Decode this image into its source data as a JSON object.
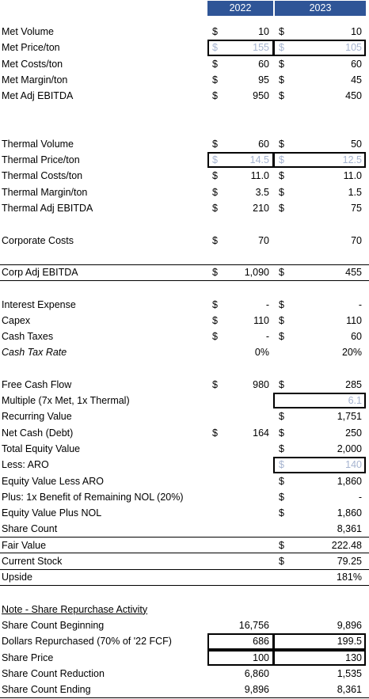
{
  "header": [
    "2022",
    "2023"
  ],
  "rows": [
    {
      "label": "Met Volume",
      "d1": "$",
      "v1": "10",
      "d2": "$",
      "v2": "10"
    },
    {
      "label": "Met Price/ton",
      "d1": "$",
      "v1": "155",
      "d2": "$",
      "v2": "105"
    },
    {
      "label": "Met Costs/ton",
      "d1": "$",
      "v1": "60",
      "d2": "$",
      "v2": "60"
    },
    {
      "label": "Met Margin/ton",
      "d1": "$",
      "v1": "95",
      "d2": "$",
      "v2": "45"
    },
    {
      "label": "Met Adj EBITDA",
      "d1": "$",
      "v1": "950",
      "d2": "$",
      "v2": "450"
    },
    null,
    null,
    {
      "label": "Thermal Volume",
      "d1": "$",
      "v1": "60",
      "d2": "$",
      "v2": "50"
    },
    {
      "label": "Thermal Price/ton",
      "d1": "$",
      "v1": "14.5",
      "d2": "$",
      "v2": "12.5"
    },
    {
      "label": "Thermal Costs/ton",
      "d1": "$",
      "v1": "11.0",
      "d2": "$",
      "v2": "11.0"
    },
    {
      "label": "Thermal Margin/ton",
      "d1": "$",
      "v1": "3.5",
      "d2": "$",
      "v2": "1.5"
    },
    {
      "label": "Thermal Adj EBITDA",
      "d1": "$",
      "v1": "210",
      "d2": "$",
      "v2": "75"
    },
    null,
    {
      "label": "Corporate Costs",
      "d1": "$",
      "v1": "70",
      "v2": "70"
    },
    null,
    {
      "label": "Corp Adj EBITDA",
      "d1": "$",
      "v1": "1,090",
      "d2": "$",
      "v2": "455"
    },
    null,
    {
      "label": "Interest Expense",
      "d1": "$",
      "v1": "-",
      "d2": "$",
      "v2": "-"
    },
    {
      "label": "Capex",
      "d1": "$",
      "v1": "110",
      "d2": "$",
      "v2": "110"
    },
    {
      "label": "Cash Taxes",
      "d1": "$",
      "v1": "-",
      "d2": "$",
      "v2": "60"
    },
    {
      "label": "Cash Tax Rate",
      "v1": "0%",
      "v2": "20%"
    },
    null,
    {
      "label": "Free Cash Flow",
      "d1": "$",
      "v1": "980",
      "d2": "$",
      "v2": "285"
    },
    {
      "label": "Multiple (7x Met, 1x Thermal)",
      "v2": "6.1"
    },
    {
      "label": "Recurring Value",
      "d2": "$",
      "v2": "1,751"
    },
    {
      "label": "Net Cash (Debt)",
      "d1": "$",
      "v1": "164",
      "d2": "$",
      "v2": "250"
    },
    {
      "label": "Total Equity Value",
      "d2": "$",
      "v2": "2,000"
    },
    {
      "label": "Less: ARO",
      "d2": "$",
      "v2": "140"
    },
    {
      "label": "Equity Value Less ARO",
      "d2": "$",
      "v2": "1,860"
    },
    {
      "label": "Plus: 1x Benefit of Remaining NOL (20%)",
      "d2": "$",
      "v2": "-"
    },
    {
      "label": "Equity Value Plus NOL",
      "d2": "$",
      "v2": "1,860"
    },
    {
      "label": "Share Count",
      "v2": "8,361"
    },
    {
      "label": "Fair Value",
      "d2": "$",
      "v2": "222.48"
    },
    {
      "label": "Current Stock",
      "d2": "$",
      "v2": "79.25"
    },
    {
      "label": "Upside",
      "v2": "181%"
    },
    null,
    {
      "label": "Note - Share Repurchase Activity"
    },
    {
      "label": "Share Count Beginning",
      "v1": "16,756",
      "v2": "9,896"
    },
    {
      "label": "Dollars Repurchased (70% of '22 FCF)",
      "v1": "686",
      "v2": "199.5"
    },
    {
      "label": "Share Price",
      "v1": "100",
      "v2": "130"
    },
    {
      "label": "Share Count Reduction",
      "v1": "6,860",
      "v2": "1,535"
    },
    {
      "label": "Share Count Ending",
      "v1": "9,896",
      "v2": "8,361"
    }
  ]
}
